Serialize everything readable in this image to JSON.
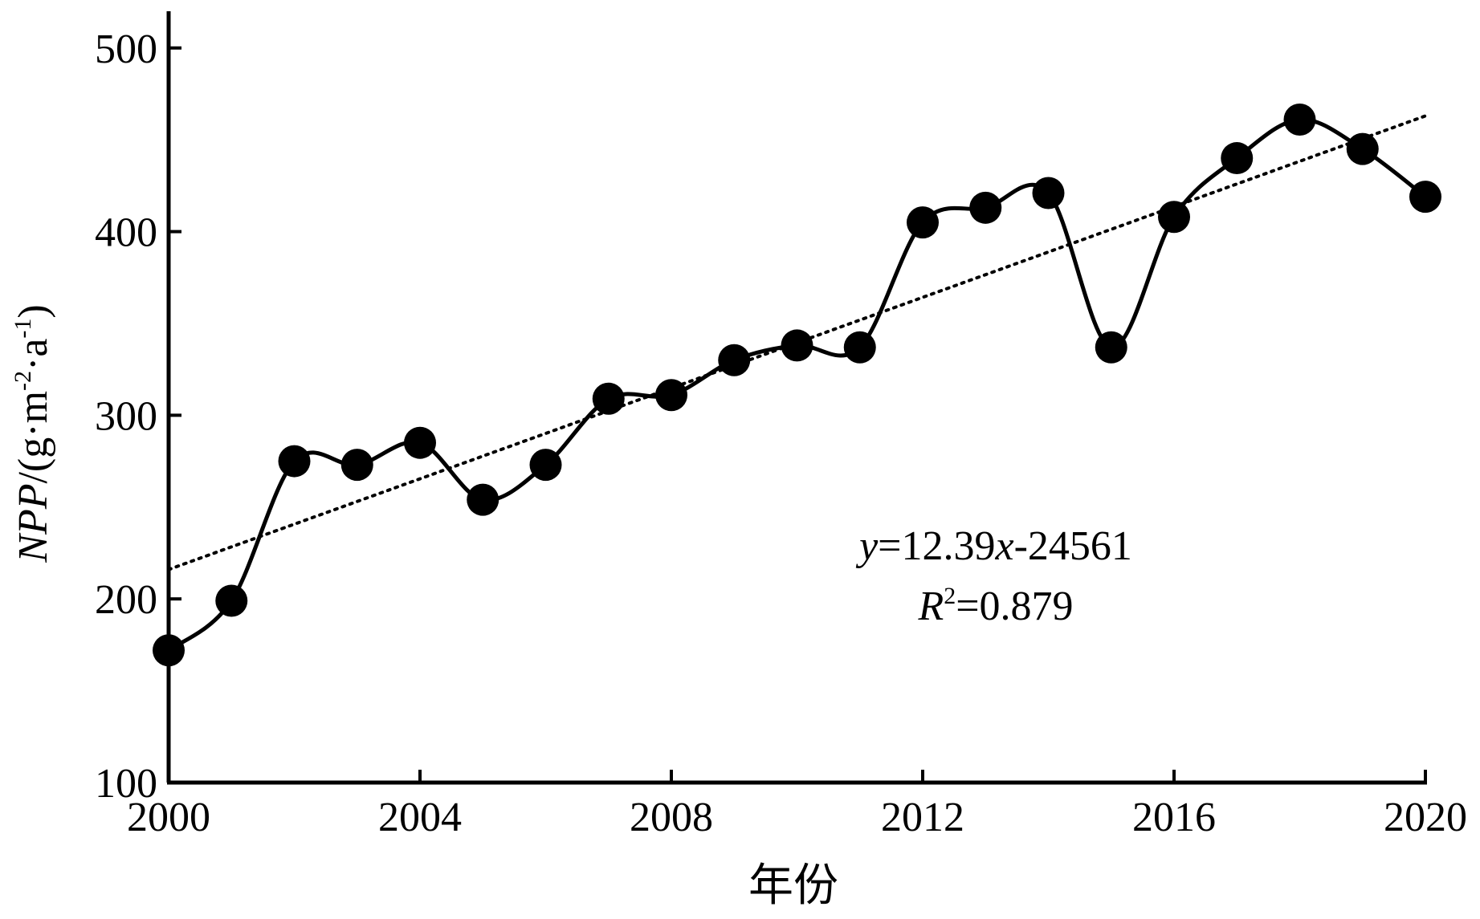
{
  "chart_data": {
    "type": "line",
    "x": [
      2000,
      2001,
      2002,
      2003,
      2004,
      2005,
      2006,
      2007,
      2008,
      2009,
      2010,
      2011,
      2012,
      2013,
      2014,
      2015,
      2016,
      2017,
      2018,
      2019,
      2020
    ],
    "series": [
      {
        "values": [
          172,
          199,
          275,
          273,
          285,
          254,
          273,
          309,
          311,
          330,
          338,
          337,
          405,
          413,
          421,
          337,
          408,
          440,
          461,
          445,
          419
        ],
        "style": "solid line with filled circle markers",
        "color": "#000000"
      }
    ],
    "trendline": {
      "style": "dotted",
      "color": "#000000",
      "slope": 12.39,
      "intercept": -24561,
      "from": [
        2000,
        216
      ],
      "to": [
        2020,
        463
      ]
    },
    "xlabel": "年份",
    "ylabel": {
      "italic": "NPP",
      "base": "/(g·m",
      "sup1": "-2",
      "mid": "·a",
      "sup2": "-1",
      "close": ")"
    },
    "xlim": [
      2000,
      2020
    ],
    "ylim": [
      100,
      520
    ],
    "xticks": [
      "2000",
      "2004",
      "2008",
      "2012",
      "2016",
      "2020"
    ],
    "yticks": [
      "100",
      "200",
      "300",
      "400",
      "500"
    ],
    "equation": {
      "y": "y",
      "rest1": "=12.39",
      "x": "x",
      "rest2": "-24561",
      "R": "R",
      "sup": "2",
      "rval": "=0.879"
    },
    "grid": false,
    "legend": "none"
  }
}
